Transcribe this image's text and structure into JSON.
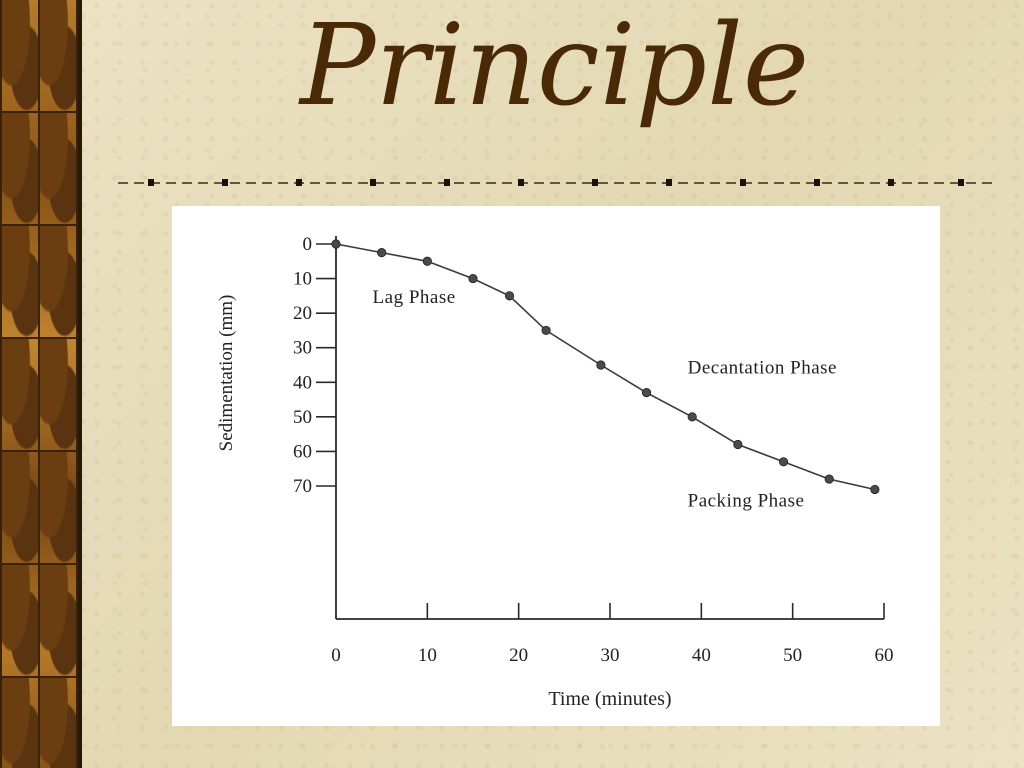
{
  "slide": {
    "title": "Principle"
  },
  "chart_data": {
    "type": "line",
    "title": "",
    "xlabel": "Time (minutes)",
    "ylabel": "Sedimentation (mm)",
    "x_ticks": [
      "0",
      "10",
      "20",
      "30",
      "40",
      "50",
      "60"
    ],
    "y_ticks": [
      "0",
      "10",
      "20",
      "30",
      "40",
      "50",
      "60",
      "70"
    ],
    "xlim": [
      0,
      60
    ],
    "ylim": [
      0,
      70
    ],
    "y_inverted": true,
    "grid": false,
    "series": [
      {
        "x": [
          0,
          5,
          10,
          15,
          19,
          23,
          29,
          34,
          39,
          44,
          49,
          54,
          59
        ],
        "y": [
          0,
          2.5,
          5,
          10,
          15,
          25,
          35,
          43,
          50,
          58,
          63,
          68,
          71
        ]
      }
    ],
    "annotations": [
      {
        "text": "Lag Phase",
        "x": 4,
        "y": 17
      },
      {
        "text": "Decantation Phase",
        "x": 38.5,
        "y": 37.5
      },
      {
        "text": "Packing Phase",
        "x": 38.5,
        "y": 76
      }
    ]
  }
}
